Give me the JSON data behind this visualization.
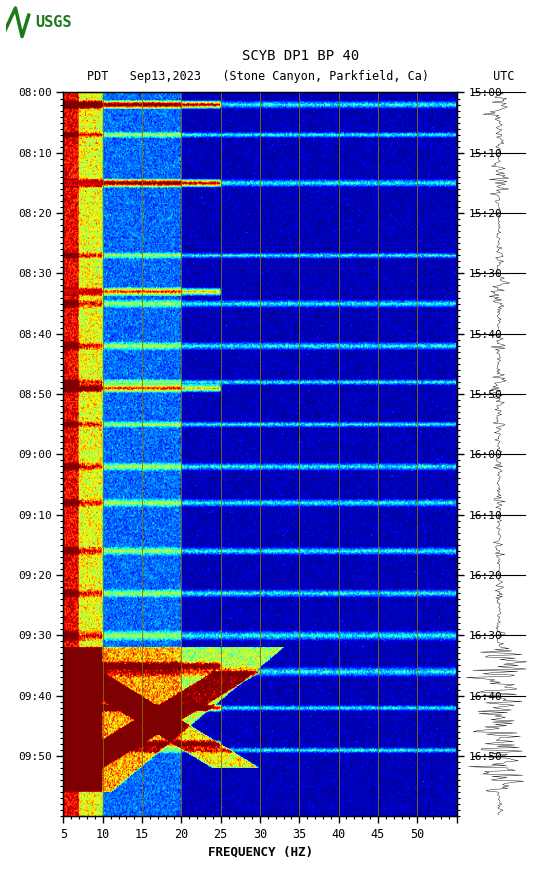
{
  "title_line1": "SCYB DP1 BP 40",
  "title_line2": "PDT   Sep13,2023   (Stone Canyon, Parkfield, Ca)         UTC",
  "xlabel": "FREQUENCY (HZ)",
  "freq_min": 0,
  "freq_max": 50,
  "left_yticks_pdt": [
    "08:00",
    "08:10",
    "08:20",
    "08:30",
    "08:40",
    "08:50",
    "09:00",
    "09:10",
    "09:20",
    "09:30",
    "09:40",
    "09:50"
  ],
  "right_yticks_utc": [
    "15:00",
    "15:10",
    "15:20",
    "15:30",
    "15:40",
    "15:50",
    "16:00",
    "16:10",
    "16:20",
    "16:30",
    "16:40",
    "16:50"
  ],
  "vline_freqs": [
    5,
    10,
    15,
    20,
    25,
    30,
    35,
    40,
    45
  ],
  "vline_color": "#8B7000",
  "usgs_green": "#1a7a1a",
  "n_time": 600,
  "n_freq": 500,
  "random_seed": 42
}
